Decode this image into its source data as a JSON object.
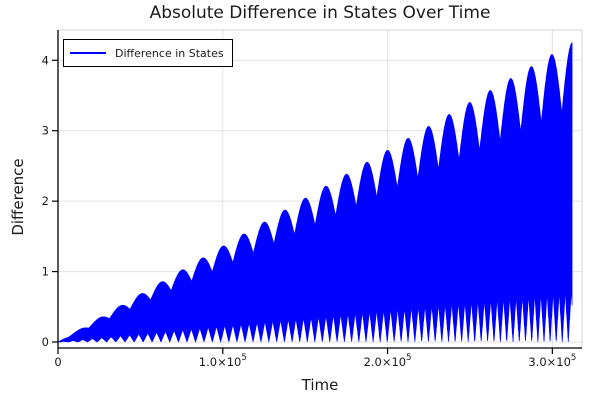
{
  "chart_data": {
    "type": "area",
    "title": "Absolute Difference in States Over Time",
    "xlabel": "Time",
    "ylabel": "Difference",
    "legend_position": "top-left",
    "grid": true,
    "xlim": [
      0,
      318000
    ],
    "ylim": [
      -0.085,
      4.43
    ],
    "x_ticks": [
      {
        "text": "0",
        "sup": "",
        "value": 0
      },
      {
        "text": "1.0×10",
        "sup": "5",
        "value": 100000
      },
      {
        "text": "2.0×10",
        "sup": "5",
        "value": 200000
      },
      {
        "text": "3.0×10",
        "sup": "5",
        "value": 300000
      }
    ],
    "y_ticks": [
      {
        "text": "0",
        "value": 0
      },
      {
        "text": "1",
        "value": 1
      },
      {
        "text": "2",
        "value": 2
      },
      {
        "text": "3",
        "value": 3
      },
      {
        "text": "4",
        "value": 4
      }
    ],
    "series": [
      {
        "name": "Difference in States",
        "color": "#0000ff"
      }
    ],
    "colors": {
      "series": "#0000ff",
      "grid": "#e2e2e2",
      "plot_border": "#d4d4d4",
      "spine": "#000000",
      "text": "#1a1a1a"
    },
    "waveform": {
      "description": "Fast oscillation |difference| repeatedly touching zero, with a linearly growing, beat-modulated (scalloped) upper envelope",
      "t_start": 0,
      "t_end": 312000,
      "envelope_slope": 1.3622e-05,
      "envelope_value_at_end": 4.25,
      "upper_bump_cycles": 25,
      "upper_valley_ratio": 0.78,
      "lower_notch_height_ratio": 0.17,
      "zero_crossing_freq_start": 0.000165,
      "zero_crossing_freq_end": 0.000275,
      "samples": 2400
    }
  }
}
